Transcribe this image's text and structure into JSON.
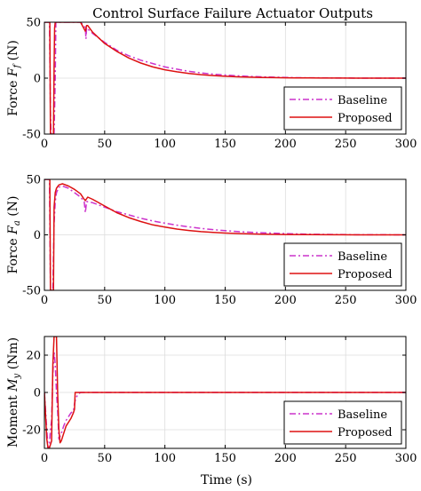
{
  "figure": {
    "title": "Control Surface Failure Actuator Outputs",
    "xlabel": "Time (s)"
  },
  "colors": {
    "Baseline": "#cc33cc",
    "Proposed": "#dd1111"
  },
  "chart_data": [
    {
      "type": "line",
      "ylabel": "Force F_f (N)",
      "ylabel_main": "Force ",
      "ylabel_sym": "F",
      "ylabel_sub": "f",
      "ylabel_unit": " (N)",
      "xlim": [
        0,
        300
      ],
      "ylim": [
        -50,
        50
      ],
      "xticks": [
        0,
        50,
        100,
        150,
        200,
        250,
        300
      ],
      "yticks": [
        -50,
        0,
        50
      ],
      "grid": true,
      "legend": "bottom-right",
      "series": [
        {
          "name": "Baseline",
          "style": "dashdot",
          "x": [
            0,
            4.2,
            5,
            5.5,
            6,
            7,
            8,
            9,
            9.5,
            10,
            30,
            34,
            34.5,
            35,
            36,
            40,
            50,
            60,
            70,
            80,
            90,
            100,
            110,
            120,
            130,
            140,
            150,
            160,
            170,
            180,
            190,
            200,
            210,
            220,
            230,
            240,
            250,
            260,
            280,
            300
          ],
          "y": [
            50,
            50,
            -30,
            -50,
            -50,
            -50,
            -50,
            0,
            50,
            50,
            50,
            45,
            35,
            45,
            44,
            40,
            32,
            25,
            20,
            16,
            13,
            10,
            8,
            6,
            4.7,
            3.6,
            2.8,
            2.1,
            1.6,
            1.2,
            0.9,
            0.6,
            0.4,
            0.3,
            0.2,
            0.1,
            0.1,
            0,
            0,
            0
          ]
        },
        {
          "name": "Proposed",
          "style": "solid",
          "x": [
            0,
            4.5,
            5,
            6,
            7,
            7.5,
            8,
            8.5,
            9,
            9.5,
            30,
            34,
            35,
            36,
            40,
            50,
            60,
            70,
            80,
            90,
            100,
            110,
            120,
            130,
            140,
            150,
            160,
            170,
            180,
            190,
            200,
            210,
            220,
            230,
            240,
            260,
            280,
            300
          ],
          "y": [
            50,
            50,
            -50,
            -50,
            -50,
            -50,
            10,
            45,
            50,
            50,
            50,
            42,
            47,
            47,
            41,
            31,
            24,
            18,
            13.5,
            10,
            7.5,
            5.6,
            4.2,
            3.1,
            2.3,
            1.7,
            1.2,
            0.9,
            0.6,
            0.45,
            0.3,
            0.2,
            0.15,
            0.1,
            0.05,
            0,
            0,
            0
          ]
        }
      ]
    },
    {
      "type": "line",
      "ylabel": "Force F_a (N)",
      "ylabel_main": "Force ",
      "ylabel_sym": "F",
      "ylabel_sub": "a",
      "ylabel_unit": " (N)",
      "xlim": [
        0,
        300
      ],
      "ylim": [
        -50,
        50
      ],
      "xticks": [
        0,
        50,
        100,
        150,
        200,
        250,
        300
      ],
      "yticks": [
        -50,
        0,
        50
      ],
      "grid": true,
      "legend": "bottom-right",
      "series": [
        {
          "name": "Baseline",
          "style": "dashdot",
          "x": [
            0,
            4.2,
            5,
            6,
            7,
            8,
            9,
            10,
            12,
            15,
            20,
            25,
            30,
            33,
            34,
            35,
            40,
            50,
            60,
            70,
            80,
            90,
            100,
            110,
            120,
            130,
            140,
            150,
            160,
            170,
            180,
            200,
            220,
            240,
            260,
            280,
            300
          ],
          "y": [
            50,
            50,
            -50,
            -50,
            -50,
            10,
            30,
            38,
            43,
            44,
            42,
            38,
            34,
            30,
            20,
            30,
            29,
            25,
            21,
            18,
            15,
            12.5,
            10.5,
            8.7,
            7.1,
            5.8,
            4.7,
            3.8,
            3,
            2.4,
            1.9,
            1.1,
            0.6,
            0.3,
            0.1,
            0.05,
            0
          ]
        },
        {
          "name": "Proposed",
          "style": "solid",
          "x": [
            0,
            4.5,
            5,
            6,
            7,
            7.5,
            8,
            9,
            10,
            12,
            15,
            20,
            25,
            30,
            33,
            34,
            36,
            40,
            50,
            60,
            70,
            80,
            90,
            100,
            110,
            120,
            130,
            140,
            150,
            160,
            170,
            180,
            200,
            220,
            240,
            260,
            280,
            300
          ],
          "y": [
            50,
            50,
            -50,
            -50,
            -50,
            -50,
            25,
            38,
            42,
            45,
            46,
            44,
            41,
            37,
            32,
            31,
            34,
            32,
            26,
            20,
            15.5,
            12,
            9,
            7,
            5.2,
            3.9,
            2.9,
            2.2,
            1.6,
            1.2,
            0.9,
            0.6,
            0.3,
            0.15,
            0.05,
            0,
            0,
            0
          ]
        }
      ]
    },
    {
      "type": "line",
      "ylabel": "Moment M_y (Nm)",
      "ylabel_main": "Moment ",
      "ylabel_sym": "M",
      "ylabel_sub": "y",
      "ylabel_unit": " (Nm)",
      "xlim": [
        0,
        300
      ],
      "ylim": [
        -30,
        30
      ],
      "xticks": [
        0,
        50,
        100,
        150,
        200,
        250,
        300
      ],
      "yticks": [
        -20,
        0,
        20
      ],
      "grid": true,
      "legend": "bottom-right",
      "series": [
        {
          "name": "Baseline",
          "style": "dashdot",
          "x": [
            0,
            2,
            3,
            4,
            5,
            6,
            7,
            8,
            9,
            10,
            11,
            12,
            14,
            16,
            18,
            20,
            22,
            24,
            25,
            26,
            28,
            30,
            35,
            40,
            50,
            100,
            200,
            300
          ],
          "y": [
            0,
            -20,
            -30,
            -30,
            -20,
            -15,
            10,
            22,
            15,
            0,
            -10,
            -25,
            -22,
            -18,
            -15,
            -13,
            -11,
            -10,
            -6,
            -3,
            -1,
            0,
            0,
            0,
            0,
            0,
            0,
            0
          ]
        },
        {
          "name": "Proposed",
          "style": "solid",
          "x": [
            0,
            2,
            3,
            4,
            5,
            6,
            7,
            8,
            9,
            10,
            11,
            12,
            13,
            14,
            16,
            18,
            20,
            22,
            24,
            25,
            25.5,
            30,
            50,
            100,
            200,
            300
          ],
          "y": [
            0,
            -25,
            -30,
            -30,
            -28,
            -26,
            15,
            30,
            30,
            30,
            0,
            -20,
            -27,
            -26,
            -22,
            -18,
            -16,
            -14,
            -11,
            -9,
            0,
            0,
            0,
            0,
            0,
            0
          ]
        }
      ]
    }
  ]
}
